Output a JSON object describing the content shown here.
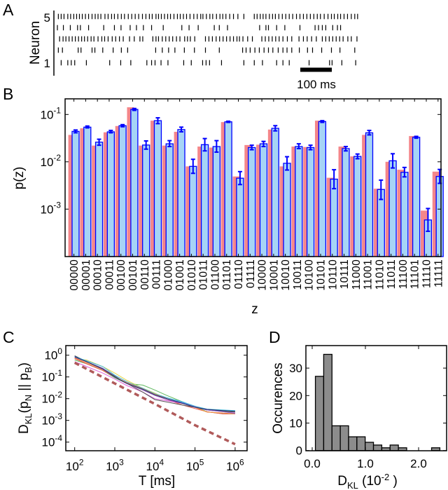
{
  "panel_labels": [
    "A",
    "B",
    "C",
    "D"
  ],
  "chart_data": [
    {
      "type": "raster",
      "panel": "A",
      "ylabel": "Neuron",
      "ytick_labels": [
        "5",
        "1"
      ],
      "scale_bar_label": "100 ms",
      "scale_bar_ms": 100,
      "spike_times_ms": {
        "neuron_5": [
          3,
          12,
          21,
          33,
          42,
          52,
          61,
          70,
          79,
          89,
          99,
          110,
          120,
          129,
          138,
          151,
          161,
          172,
          181,
          192,
          203,
          213,
          225,
          236,
          247,
          258,
          270,
          281,
          292,
          301,
          313,
          321,
          330,
          340,
          350,
          359,
          370,
          381,
          390,
          400,
          410,
          421,
          433,
          444,
          455,
          462,
          473,
          484,
          493,
          505,
          516,
          525,
          535,
          547,
          559,
          573,
          592,
          625,
          634,
          644,
          653,
          662,
          673,
          683,
          692,
          703,
          714,
          725,
          736,
          747,
          759,
          770,
          781,
          792,
          803,
          814,
          825,
          835,
          847,
          859,
          870,
          879,
          890,
          899,
          910,
          921,
          933,
          944,
          953
        ],
        "neuron_4": [
          0,
          19,
          41,
          64,
          73,
          99,
          147,
          181,
          202,
          231,
          251,
          273,
          299,
          336,
          395,
          418,
          447,
          498,
          514,
          540,
          642,
          662,
          670,
          696,
          722,
          770,
          818,
          829,
          841,
          852,
          874,
          889,
          899
        ],
        "neuron_3": [
          7,
          18,
          27,
          37,
          47,
          57,
          67,
          77,
          86,
          96,
          107,
          116,
          129,
          141,
          150,
          161,
          174,
          185,
          197,
          209,
          229,
          244,
          262,
          271,
          303,
          313,
          321,
          333,
          344,
          355,
          366,
          378,
          389,
          404,
          413,
          422,
          436,
          470,
          481,
          492,
          504,
          515,
          526,
          537,
          548,
          559,
          570,
          578,
          589,
          604,
          619,
          649,
          660,
          671,
          682,
          693,
          704,
          716,
          730,
          744,
          767,
          781,
          793,
          807,
          822,
          841,
          852,
          863,
          874,
          885,
          896,
          907,
          922,
          933,
          951
        ],
        "neuron_2": [
          3,
          16,
          66,
          75,
          110,
          119,
          144,
          177,
          203,
          223,
          312,
          333,
          353,
          373,
          403,
          435,
          470,
          514,
          588,
          599,
          612,
          627,
          641,
          656,
          670,
          684,
          701,
          716,
          729,
          744,
          768,
          794,
          810,
          839,
          870,
          897,
          944
        ],
        "neuron_1": [
          12,
          33,
          44,
          55,
          92,
          166,
          201,
          233,
          284,
          299,
          310,
          329,
          351,
          401,
          425,
          461,
          472,
          483,
          521,
          592,
          625,
          651,
          696,
          716,
          736,
          799,
          864,
          872,
          903,
          947
        ]
      }
    },
    {
      "type": "bar",
      "panel": "B",
      "xlabel": "z",
      "ylabel": "p(z)",
      "yscale": "log",
      "ylim": [
        0.0001,
        0.2
      ],
      "yticks": [
        {
          "base": "10",
          "exp": "-1"
        },
        {
          "base": "10",
          "exp": "-2"
        },
        {
          "base": "10",
          "exp": "-3"
        }
      ],
      "ytick_values": [
        0.1,
        0.01,
        0.001
      ],
      "categories": [
        "00000",
        "00001",
        "00010",
        "00011",
        "00100",
        "00101",
        "00110",
        "00111",
        "01000",
        "01001",
        "01010",
        "01011",
        "01100",
        "01101",
        "01110",
        "01111",
        "10000",
        "10001",
        "10010",
        "10011",
        "10100",
        "10101",
        "10110",
        "10111",
        "11000",
        "11001",
        "11010",
        "11011",
        "11100",
        "11101",
        "11110",
        "11111"
      ],
      "series": [
        {
          "color": "#f4868a",
          "values": [
            0.037,
            0.051,
            0.022,
            0.042,
            0.057,
            0.142,
            0.022,
            0.074,
            0.022,
            0.043,
            0.008,
            0.021,
            0.02,
            0.069,
            0.0049,
            0.0226,
            0.023,
            0.048,
            0.008,
            0.021,
            0.0205,
            0.074,
            0.0046,
            0.021,
            0.013,
            0.037,
            0.0027,
            0.01,
            0.0068,
            0.035,
            0.00093,
            0.0062
          ]
        },
        {
          "color": "#a6d4f6",
          "edge": "#0000ff",
          "values": [
            0.044,
            0.054,
            0.026,
            0.043,
            0.058,
            0.128,
            0.0226,
            0.074,
            0.024,
            0.048,
            0.008,
            0.023,
            0.021,
            0.07,
            0.0045,
            0.02,
            0.024,
            0.051,
            0.0093,
            0.021,
            0.02,
            0.071,
            0.0043,
            0.019,
            0.013,
            0.041,
            0.0026,
            0.0105,
            0.006,
            0.033,
            0.00059,
            0.0049
          ],
          "err_low": [
            0.041,
            0.052,
            0.0224,
            0.041,
            0.055,
            0.122,
            0.0185,
            0.064,
            0.021,
            0.043,
            0.0057,
            0.017,
            0.016,
            0.068,
            0.0033,
            0.018,
            0.021,
            0.045,
            0.0067,
            0.019,
            0.018,
            0.068,
            0.0027,
            0.017,
            0.0116,
            0.037,
            0.0016,
            0.0074,
            0.0048,
            0.0315,
            0.00034,
            0.0035
          ],
          "err_high": [
            0.047,
            0.057,
            0.03,
            0.046,
            0.061,
            0.134,
            0.0276,
            0.085,
            0.028,
            0.054,
            0.0113,
            0.031,
            0.028,
            0.072,
            0.0062,
            0.0224,
            0.027,
            0.058,
            0.0128,
            0.024,
            0.0224,
            0.074,
            0.0068,
            0.021,
            0.0146,
            0.046,
            0.0041,
            0.0148,
            0.0076,
            0.0345,
            0.00103,
            0.0069
          ]
        }
      ]
    },
    {
      "type": "line",
      "panel": "C",
      "xscale": "log",
      "yscale": "log",
      "xlim": [
        60,
        1950000
      ],
      "ylim": [
        4.2e-05,
        2.7
      ],
      "xlabel": "T [ms]",
      "ylabel_parts": [
        {
          "t": "D",
          "sub": false
        },
        {
          "t": "KL",
          "sub": true
        },
        {
          "t": "(p",
          "sub": false
        },
        {
          "t": "N",
          "sub": true
        },
        {
          "t": " || p",
          "sub": false
        },
        {
          "t": "B",
          "sub": true
        },
        {
          "t": ")",
          "sub": false
        }
      ],
      "xticks": [
        {
          "base": "10",
          "exp": "2"
        },
        {
          "base": "10",
          "exp": "3"
        },
        {
          "base": "10",
          "exp": "4"
        },
        {
          "base": "10",
          "exp": "5"
        },
        {
          "base": "10",
          "exp": "6"
        }
      ],
      "xtick_values": [
        100,
        1000,
        10000,
        100000,
        1000000
      ],
      "yticks": [
        {
          "base": "10",
          "exp": "0"
        },
        {
          "base": "10",
          "exp": "-1"
        },
        {
          "base": "10",
          "exp": "-2"
        },
        {
          "base": "10",
          "exp": "-3"
        },
        {
          "base": "10",
          "exp": "-4"
        }
      ],
      "ytick_values": [
        1,
        0.1,
        0.01,
        0.001,
        0.0001
      ],
      "x": [
        100,
        200,
        500,
        1000,
        2000,
        5000,
        10000,
        20000,
        50000,
        100000,
        200000,
        500000,
        1000000
      ],
      "series": [
        {
          "color": "#5fb85f",
          "values": [
            0.6,
            0.4,
            0.2,
            0.09,
            0.05,
            0.042,
            0.025,
            0.014,
            0.007,
            0.0042,
            0.0025,
            0.002,
            0.002
          ]
        },
        {
          "color": "#e8d84a",
          "values": [
            0.7,
            0.6,
            0.3,
            0.15,
            0.07,
            0.03,
            0.018,
            0.01,
            0.006,
            0.004,
            0.003,
            0.0028,
            0.0025
          ]
        },
        {
          "color": "#4b6ff0",
          "values": [
            0.9,
            0.5,
            0.25,
            0.1,
            0.055,
            0.03,
            0.016,
            0.01,
            0.0065,
            0.0045,
            0.003,
            0.0028,
            0.0027
          ]
        },
        {
          "color": "#e8504a",
          "values": [
            0.7,
            0.4,
            0.2,
            0.1,
            0.05,
            0.025,
            0.015,
            0.009,
            0.005,
            0.0035,
            0.0025,
            0.002,
            0.002
          ]
        },
        {
          "color": "#e060d8",
          "values": [
            0.5,
            0.3,
            0.15,
            0.08,
            0.04,
            0.02,
            0.01,
            0.008,
            0.006,
            0.004,
            0.003,
            0.0025,
            0.0022
          ]
        },
        {
          "color": "#555555",
          "values": [
            0.95,
            0.5,
            0.25,
            0.11,
            0.05,
            0.02,
            0.009,
            0.007,
            0.005,
            0.004,
            0.003,
            0.0026,
            0.0024
          ]
        },
        {
          "color": "#40b8d8",
          "values": [
            0.85,
            0.55,
            0.3,
            0.12,
            0.06,
            0.03,
            0.017,
            0.011,
            0.007,
            0.0045,
            0.0033,
            0.003,
            0.0028
          ]
        },
        {
          "color": "#f09040",
          "values": [
            0.75,
            0.45,
            0.22,
            0.1,
            0.055,
            0.028,
            0.016,
            0.01,
            0.006,
            0.004,
            0.0024,
            0.0022,
            0.002
          ]
        },
        {
          "color": "#9060c8",
          "values": [
            0.8,
            0.5,
            0.25,
            0.1,
            0.05,
            0.025,
            0.014,
            0.009,
            0.006,
            0.0042,
            0.003,
            0.0025,
            0.0021
          ]
        },
        {
          "color": "#203070",
          "values": [
            0.85,
            0.5,
            0.23,
            0.1,
            0.05,
            0.027,
            0.015,
            0.01,
            0.006,
            0.004,
            0.0032,
            0.0028,
            0.0026
          ]
        }
      ],
      "reference_line": {
        "style": "dashed",
        "color": "#b05a5a",
        "x": [
          100,
          1000,
          10000,
          100000,
          1000000
        ],
        "values": [
          0.45,
          0.05,
          0.0057,
          0.0006,
          8e-05
        ]
      }
    },
    {
      "type": "histogram",
      "panel": "D",
      "xlim": [
        -0.12,
        2.53
      ],
      "ylim": [
        0,
        38
      ],
      "xlabel_parts": [
        {
          "t": "D",
          "k": "n"
        },
        {
          "t": "KL",
          "k": "sub"
        },
        {
          "t": " (10",
          "k": "n"
        },
        {
          "t": "-2",
          "k": "sup"
        },
        {
          "t": " )",
          "k": "n"
        }
      ],
      "ylabel": "Occurences",
      "xticks": [
        "0.0",
        "1.0",
        "2.0"
      ],
      "xtick_values": [
        0,
        1,
        2
      ],
      "yticks": [
        "0",
        "10",
        "20",
        "30"
      ],
      "ytick_values": [
        0,
        10,
        20,
        30
      ],
      "bin_start": 0.06,
      "bin_width": 0.156,
      "counts": [
        27,
        35,
        9,
        9,
        5,
        5,
        3,
        2,
        1,
        2,
        1,
        0,
        0,
        0,
        1
      ],
      "bar_color": "#8c8c8c"
    }
  ]
}
